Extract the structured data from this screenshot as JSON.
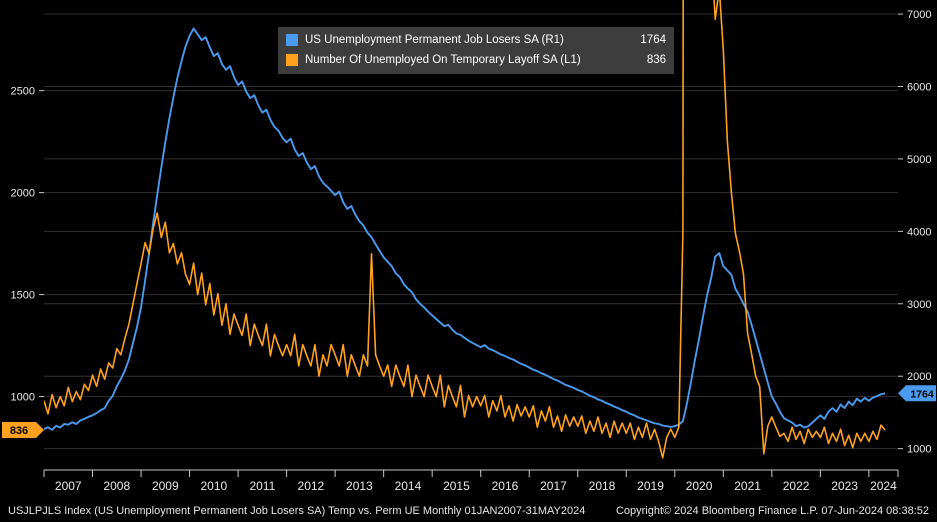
{
  "statusbar": {
    "left": "USJLPJLS Index (US Unemployment Permanent Job Losers SA) Temp vs. Perm UE  Monthly 01JAN2007-31MAY2024",
    "right": "Copyright© 2024 Bloomberg Finance L.P.  07-Jun-2024 08:38:52"
  },
  "chart_data": {
    "type": "line",
    "title": "Temp vs. Perm UE",
    "frequency": "Monthly",
    "date_range": "01JAN2007-31MAY2024",
    "grid": "horizontal",
    "legend_position": "top-center",
    "colors": {
      "background": "#000000",
      "grid": "#303030",
      "axis_text": "#e8e8e8",
      "axis_line": "#c8c8c8"
    },
    "x_axis": {
      "start_year": 2007,
      "end_year": 2024.6,
      "data_end": 2024.417,
      "tick_labels": [
        "2007",
        "2008",
        "2009",
        "2010",
        "2011",
        "2012",
        "2013",
        "2014",
        "2015",
        "2016",
        "2017",
        "2018",
        "2019",
        "2020",
        "2021",
        "2022",
        "2023",
        "2024"
      ]
    },
    "left_axis": {
      "code": "L1",
      "ticks": [
        1000,
        1500,
        2000,
        2500
      ],
      "range": [
        640,
        2920
      ],
      "badge_value": 836,
      "badge_color": "#FFA11E"
    },
    "right_axis": {
      "code": "R1",
      "ticks": [
        1000,
        2000,
        3000,
        4000,
        5000,
        6000,
        7000
      ],
      "range": [
        705,
        7125
      ],
      "badge_value": 1764,
      "badge_color": "#4A9AF0"
    },
    "series": [
      {
        "name": "US Unemployment Permanent Job Losers SA (R1)",
        "axis": "right",
        "color": "#4A9AF0",
        "last_value": 1764,
        "values": [
          1270,
          1295,
          1260,
          1315,
          1290,
          1340,
          1330,
          1365,
          1340,
          1390,
          1410,
          1440,
          1460,
          1490,
          1530,
          1560,
          1660,
          1730,
          1860,
          1960,
          2080,
          2230,
          2460,
          2680,
          2950,
          3320,
          3700,
          4120,
          4500,
          4880,
          5230,
          5560,
          5850,
          6120,
          6350,
          6550,
          6700,
          6800,
          6720,
          6640,
          6680,
          6540,
          6420,
          6460,
          6310,
          6230,
          6280,
          6130,
          6020,
          6070,
          5930,
          5840,
          5880,
          5740,
          5640,
          5680,
          5540,
          5440,
          5390,
          5290,
          5230,
          5280,
          5130,
          5040,
          5080,
          4950,
          4860,
          4900,
          4760,
          4670,
          4620,
          4560,
          4500,
          4550,
          4400,
          4310,
          4350,
          4230,
          4140,
          4080,
          3980,
          3920,
          3820,
          3730,
          3640,
          3580,
          3520,
          3420,
          3370,
          3270,
          3210,
          3160,
          3060,
          3000,
          2950,
          2890,
          2840,
          2790,
          2740,
          2690,
          2710,
          2640,
          2590,
          2570,
          2530,
          2490,
          2460,
          2430,
          2400,
          2430,
          2380,
          2360,
          2330,
          2300,
          2280,
          2250,
          2230,
          2200,
          2170,
          2150,
          2120,
          2090,
          2070,
          2040,
          2020,
          1990,
          1960,
          1940,
          1910,
          1880,
          1860,
          1840,
          1810,
          1790,
          1760,
          1730,
          1710,
          1680,
          1660,
          1630,
          1610,
          1580,
          1560,
          1530,
          1510,
          1480,
          1460,
          1430,
          1410,
          1390,
          1370,
          1350,
          1340,
          1320,
          1310,
          1300,
          1310,
          1330,
          1380,
          1620,
          1920,
          2230,
          2520,
          2830,
          3120,
          3360,
          3650,
          3700,
          3520,
          3460,
          3400,
          3210,
          3110,
          3000,
          2890,
          2710,
          2510,
          2310,
          2110,
          1910,
          1720,
          1620,
          1510,
          1420,
          1390,
          1360,
          1310,
          1330,
          1290,
          1310,
          1360,
          1410,
          1460,
          1410,
          1510,
          1560,
          1510,
          1610,
          1560,
          1650,
          1600,
          1690,
          1650,
          1700,
          1660,
          1705,
          1725,
          1750,
          1764
        ]
      },
      {
        "name": "Number Of Unemployed On Temporary Layoff SA  (L1)",
        "axis": "left",
        "color": "#FFA11E",
        "last_value": 836,
        "values": [
          980,
          915,
          1010,
          945,
          1000,
          955,
          1045,
          975,
          1025,
          985,
          1060,
          1030,
          1105,
          1050,
          1135,
          1085,
          1165,
          1140,
          1235,
          1205,
          1285,
          1355,
          1455,
          1555,
          1650,
          1755,
          1700,
          1825,
          1900,
          1780,
          1855,
          1705,
          1750,
          1650,
          1705,
          1600,
          1550,
          1655,
          1500,
          1605,
          1450,
          1555,
          1400,
          1505,
          1350,
          1455,
          1305,
          1405,
          1350,
          1300,
          1405,
          1250,
          1355,
          1300,
          1250,
          1355,
          1200,
          1305,
          1250,
          1200,
          1255,
          1200,
          1305,
          1150,
          1255,
          1200,
          1150,
          1255,
          1100,
          1205,
          1150,
          1255,
          1205,
          1150,
          1255,
          1100,
          1205,
          1150,
          1100,
          1205,
          1150,
          1700,
          1205,
          1150,
          1100,
          1155,
          1050,
          1155,
          1100,
          1050,
          1155,
          1000,
          1105,
          1050,
          1000,
          1105,
          1050,
          1000,
          1105,
          950,
          1055,
          1000,
          950,
          1055,
          900,
          1005,
          950,
          1000,
          955,
          1005,
          900,
          980,
          930,
          1005,
          900,
          955,
          880,
          960,
          905,
          950,
          900,
          955,
          850,
          930,
          880,
          950,
          850,
          905,
          830,
          910,
          855,
          900,
          855,
          905,
          820,
          880,
          830,
          900,
          820,
          870,
          800,
          880,
          820,
          870,
          820,
          870,
          790,
          850,
          800,
          870,
          790,
          840,
          780,
          700,
          800,
          840,
          800,
          850,
          1800,
          18000,
          15100,
          10600,
          9200,
          6100,
          4640,
          3200,
          2850,
          3000,
          2700,
          2250,
          2000,
          1800,
          1710,
          1600,
          1310,
          1210,
          1100,
          1050,
          720,
          855,
          900,
          850,
          805,
          820,
          780,
          850,
          790,
          830,
          770,
          840,
          800,
          830,
          800,
          850,
          770,
          820,
          780,
          840,
          760,
          810,
          750,
          820,
          780,
          820,
          780,
          830,
          790,
          860,
          836
        ]
      }
    ]
  }
}
